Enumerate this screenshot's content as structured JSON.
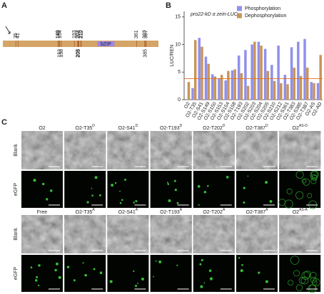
{
  "panel_a": {
    "label": "A",
    "domain": "bZIP",
    "sites_above": [
      35,
      41,
      149,
      150,
      154,
      193,
      202,
      204,
      210,
      212,
      361,
      383,
      387
    ],
    "sites_below": [
      153,
      158,
      203,
      205,
      385
    ]
  },
  "chart_data": {
    "type": "bar",
    "panel_label": "B",
    "title": "pro22-kD α zein-LUC",
    "y_label": "LUC/REN",
    "categories": [
      "O2",
      "O2-T35",
      "O2-S41",
      "O2-S149",
      "O2-S150",
      "O2-S153",
      "O2-S154",
      "O2-S158",
      "O2-T193",
      "O2-S202",
      "O2-S203",
      "O2-S204",
      "O2-S205",
      "O2-S210",
      "O2-S212",
      "O2-S361",
      "O2-T383",
      "O2-S385",
      "O2-T387",
      "O2-AS",
      "O2-AD"
    ],
    "category_colors": [
      "#222222",
      "#6a6ae0",
      "#6a6ae0",
      "#222222",
      "#222222",
      "#222222",
      "#222222",
      "#222222",
      "#e07a20",
      "#222222",
      "#222222",
      "#222222",
      "#222222",
      "#222222",
      "#222222",
      "#222222",
      "#222222",
      "#222222",
      "#e07a20",
      "#6a6ae0",
      "#6a6ae0"
    ],
    "series": [
      {
        "name": "Phosphorylation",
        "color": "#9090ee",
        "values": [
          null,
          2.1,
          11.2,
          7.8,
          4.6,
          3.9,
          3.5,
          5.3,
          8.0,
          9.0,
          10.0,
          10.5,
          9.2,
          6.3,
          9.8,
          4.5,
          9.5,
          10.5,
          11.0,
          3.2,
          3.0
        ]
      },
      {
        "name": "Dephosphorylation",
        "color": "#c8955a",
        "values": [
          3.2,
          10.8,
          9.6,
          6.5,
          4.2,
          4.5,
          5.2,
          5.5,
          4.8,
          2.5,
          10.5,
          9.8,
          5.2,
          3.4,
          3.0,
          2.8,
          5.8,
          4.3,
          5.8,
          3.0,
          8.1
        ]
      }
    ],
    "reference_line": 3.8,
    "reference_color": "#e07020",
    "ylim": [
      0,
      16
    ],
    "yticks": [
      0,
      5,
      10,
      15
    ],
    "legend": "upper-right"
  },
  "panel_c": {
    "label": "C",
    "row_labels": [
      "Blank",
      "eGFP"
    ],
    "groups": [
      {
        "headers": [
          {
            "text": "O2"
          },
          {
            "text": "O2-T35",
            "sup": "D"
          },
          {
            "text": "O2-S41",
            "sup": "D"
          },
          {
            "text": "O2-T193",
            "sup": "D"
          },
          {
            "text": "O2-T202",
            "sup": "D"
          },
          {
            "text": "O2-T387",
            "sup": "D"
          },
          {
            "text": "O2",
            "sup": "AS-D"
          }
        ]
      },
      {
        "headers": [
          {
            "text": "Free"
          },
          {
            "text": "O2-T35",
            "sup": "A"
          },
          {
            "text": "O2-S41",
            "sup": "A"
          },
          {
            "text": "O2-T193",
            "sup": "A"
          },
          {
            "text": "O2-T202",
            "sup": "A"
          },
          {
            "text": "O2-T387",
            "sup": "A"
          },
          {
            "text": "O2",
            "sup": "AS-A"
          }
        ]
      }
    ]
  }
}
